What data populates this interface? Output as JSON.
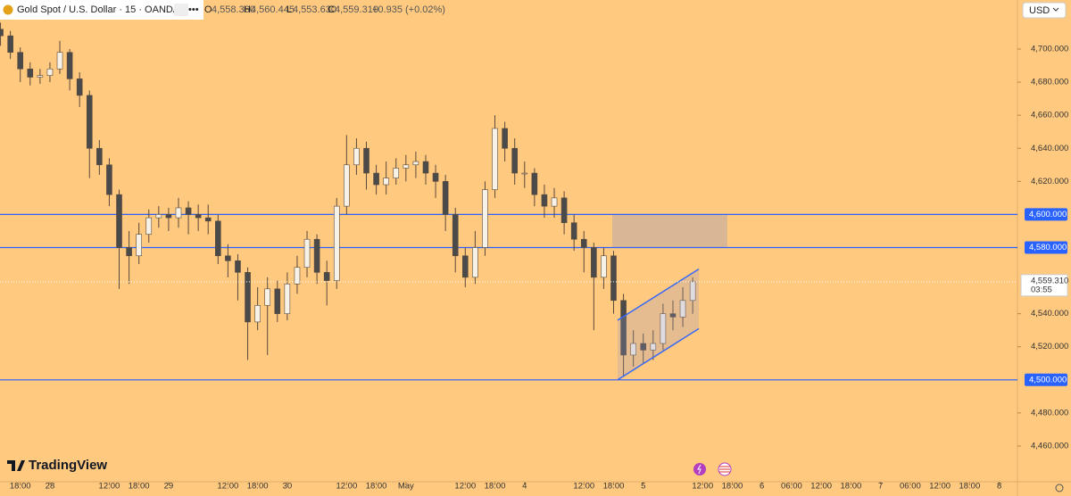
{
  "header": {
    "symbol": "Gold Spot / U.S. Dollar · 15 · OANDA",
    "open_label": "O",
    "open": "4,558.360",
    "high_label": "H",
    "high": "4,560.445",
    "low_label": "L",
    "low": "4,553.630",
    "close_label": "C",
    "close": "4,559.310",
    "change": "+0.935 (+0.02%)",
    "currency": "USD"
  },
  "branding": "TradingView",
  "chart_data": {
    "type": "candlestick",
    "up_color": "#f7f2e8",
    "down_color": "#4a4a4a",
    "open": [
      4712,
      4708,
      4698,
      4688,
      4683,
      4684,
      4688,
      4698,
      4682,
      4672,
      4640,
      4630,
      4612,
      4580,
      4575,
      4588,
      4598,
      4600,
      4598,
      4604,
      4600,
      4598,
      4596,
      4575,
      4572,
      4565,
      4535,
      4545,
      4555,
      4540,
      4558,
      4568,
      4585,
      4565,
      4560,
      4605,
      4630,
      4640,
      4625,
      4618,
      4622,
      4628,
      4630,
      4632,
      4625,
      4620,
      4600,
      4575,
      4562,
      4580,
      4615,
      4652,
      4640,
      4625,
      4625,
      4612,
      4605,
      4610,
      4595,
      4585,
      4580,
      4562,
      4575,
      4548,
      4515,
      4522,
      4518,
      4522,
      4540,
      4538,
      4548
    ],
    "high": [
      4716,
      4711,
      4701,
      4692,
      4688,
      4692,
      4705,
      4700,
      4686,
      4675,
      4645,
      4634,
      4615,
      4590,
      4595,
      4603,
      4605,
      4604,
      4610,
      4608,
      4606,
      4606,
      4600,
      4582,
      4576,
      4568,
      4556,
      4562,
      4560,
      4565,
      4575,
      4590,
      4588,
      4572,
      4610,
      4648,
      4646,
      4644,
      4630,
      4632,
      4634,
      4636,
      4638,
      4636,
      4630,
      4624,
      4604,
      4580,
      4590,
      4620,
      4660,
      4656,
      4646,
      4632,
      4628,
      4618,
      4616,
      4614,
      4600,
      4590,
      4583,
      4580,
      4578,
      4552,
      4530,
      4528,
      4530,
      4546,
      4548,
      4556,
      4562
    ],
    "low": [
      4702,
      4694,
      4680,
      4678,
      4679,
      4680,
      4685,
      4675,
      4665,
      4622,
      4624,
      4605,
      4555,
      4558,
      4570,
      4583,
      4592,
      4590,
      4592,
      4588,
      4590,
      4588,
      4570,
      4562,
      4548,
      4512,
      4530,
      4515,
      4535,
      4536,
      4552,
      4562,
      4558,
      4545,
      4555,
      4600,
      4624,
      4615,
      4612,
      4612,
      4618,
      4620,
      4622,
      4618,
      4610,
      4590,
      4565,
      4556,
      4558,
      4575,
      4610,
      4632,
      4618,
      4616,
      4605,
      4598,
      4598,
      4588,
      4578,
      4565,
      4530,
      4555,
      4540,
      4502,
      4508,
      4510,
      4512,
      4518,
      4530,
      4532,
      4540
    ],
    "close": [
      4708,
      4698,
      4688,
      4683,
      4684,
      4688,
      4698,
      4682,
      4672,
      4640,
      4630,
      4612,
      4580,
      4575,
      4588,
      4598,
      4600,
      4598,
      4604,
      4600,
      4598,
      4596,
      4575,
      4572,
      4565,
      4535,
      4545,
      4555,
      4540,
      4558,
      4568,
      4585,
      4565,
      4560,
      4605,
      4630,
      4640,
      4625,
      4618,
      4622,
      4628,
      4630,
      4632,
      4625,
      4620,
      4600,
      4575,
      4562,
      4580,
      4615,
      4652,
      4640,
      4625,
      4625,
      4612,
      4605,
      4610,
      4595,
      4585,
      4580,
      4562,
      4575,
      4548,
      4515,
      4522,
      4518,
      4522,
      4540,
      4538,
      4548,
      4559.31
    ],
    "xlim": [
      -0.05,
      102.84
    ],
    "xticks": [
      {
        "value": 2,
        "label": "18:00"
      },
      {
        "value": 5,
        "label": "28"
      },
      {
        "value": 11,
        "label": "12:00"
      },
      {
        "value": 14,
        "label": "18:00"
      },
      {
        "value": 17,
        "label": "29"
      },
      {
        "value": 23,
        "label": "12:00"
      },
      {
        "value": 26,
        "label": "18:00"
      },
      {
        "value": 29,
        "label": "30"
      },
      {
        "value": 35,
        "label": "12:00"
      },
      {
        "value": 38,
        "label": "18:00"
      },
      {
        "value": 41,
        "label": "May"
      },
      {
        "value": 47,
        "label": "12:00"
      },
      {
        "value": 50,
        "label": "18:00"
      },
      {
        "value": 53,
        "label": "4"
      },
      {
        "value": 59,
        "label": "12:00"
      },
      {
        "value": 62,
        "label": "18:00"
      },
      {
        "value": 65,
        "label": "5"
      },
      {
        "value": 71,
        "label": "12:00"
      },
      {
        "value": 74,
        "label": "18:00"
      },
      {
        "value": 77,
        "label": "6"
      },
      {
        "value": 80,
        "label": "06:00"
      },
      {
        "value": 83,
        "label": "12:00"
      },
      {
        "value": 86,
        "label": "18:00"
      },
      {
        "value": 89,
        "label": "7"
      },
      {
        "value": 92,
        "label": "06:00"
      },
      {
        "value": 95,
        "label": "12:00"
      },
      {
        "value": 98,
        "label": "18:00"
      },
      {
        "value": 101,
        "label": "8"
      }
    ],
    "ylim": [
      4438.4,
      4717.8
    ],
    "yticks": [
      {
        "value": 4700,
        "label": "4,700.000"
      },
      {
        "value": 4680,
        "label": "4,680.000"
      },
      {
        "value": 4660,
        "label": "4,660.000"
      },
      {
        "value": 4640,
        "label": "4,640.000"
      },
      {
        "value": 4620,
        "label": "4,620.000"
      },
      {
        "value": 4540,
        "label": "4,540.000"
      },
      {
        "value": 4520,
        "label": "4,520.000"
      },
      {
        "value": 4480,
        "label": "4,480.000"
      },
      {
        "value": 4460,
        "label": "4,460.000"
      }
    ],
    "levels": [
      {
        "value": 4600,
        "label": "4,600.000"
      },
      {
        "value": 4580,
        "label": "4,580.000"
      },
      {
        "value": 4500,
        "label": "4,500.000"
      }
    ],
    "level_color": "#2962ff",
    "zone": {
      "low": 4580,
      "high": 4600
    },
    "channel": [
      [
        4500,
        4531
      ],
      [
        4536,
        4567
      ]
    ],
    "last_price": {
      "value": 4559.31,
      "label": "4,559.310"
    },
    "countdown": "03:55"
  }
}
